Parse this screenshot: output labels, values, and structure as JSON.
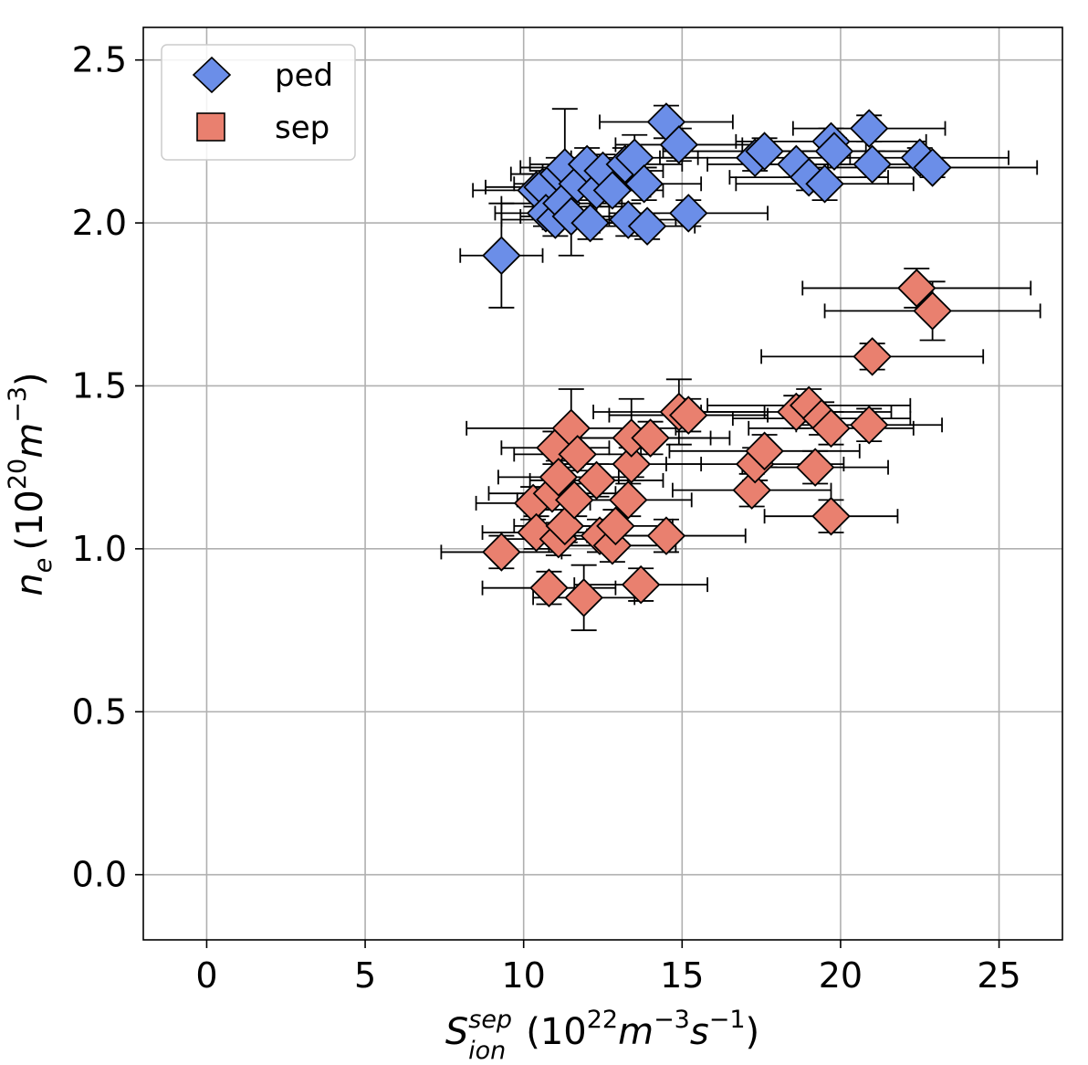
{
  "chart_data": {
    "type": "scatter",
    "title": "",
    "xlabel": {
      "base": "S",
      "sup": "sep",
      "sub": "ion",
      "units": "(10",
      "units_exp": "22",
      "units_mid": "m",
      "units_exp2": "−3",
      "units_tail": "s",
      "units_exp3": "−1",
      "units_close": ")"
    },
    "ylabel": {
      "base": "n",
      "sub": "e",
      "units": "(10",
      "units_exp": "20",
      "units_mid": "m",
      "units_exp2": "−3",
      "units_close": ")"
    },
    "xlim": [
      -2,
      27
    ],
    "ylim": [
      -0.2,
      2.6
    ],
    "xticks": [
      0,
      5,
      10,
      15,
      20,
      25
    ],
    "xtick_labels": [
      "0",
      "5",
      "10",
      "15",
      "20",
      "25"
    ],
    "yticks": [
      0.0,
      0.5,
      1.0,
      1.5,
      2.0,
      2.5
    ],
    "ytick_labels": [
      "0.0",
      "0.5",
      "1.0",
      "1.5",
      "2.0",
      "2.5"
    ],
    "grid": true,
    "legend": {
      "position": "top-left",
      "entries": [
        {
          "label": "ped",
          "marker": "diamond",
          "color": "#6b8ee8"
        },
        {
          "label": "sep",
          "marker": "square",
          "color": "#e9806f"
        }
      ]
    },
    "series": [
      {
        "name": "ped",
        "color": "#6b8ee8",
        "edge": "#000000",
        "points": [
          {
            "x": 9.3,
            "y": 1.9,
            "xerr": 1.3,
            "yerr": 0.16
          },
          {
            "x": 10.4,
            "y": 2.1,
            "xerr": 2.0,
            "yerr": 0.05
          },
          {
            "x": 10.6,
            "y": 2.11,
            "xerr": 1.8,
            "yerr": 0.05
          },
          {
            "x": 10.7,
            "y": 2.03,
            "xerr": 1.6,
            "yerr": 0.04
          },
          {
            "x": 11.0,
            "y": 2.01,
            "xerr": 1.7,
            "yerr": 0.05
          },
          {
            "x": 11.1,
            "y": 2.15,
            "xerr": 1.5,
            "yerr": 0.05
          },
          {
            "x": 11.2,
            "y": 2.06,
            "xerr": 1.9,
            "yerr": 0.05
          },
          {
            "x": 11.3,
            "y": 2.17,
            "xerr": 1.4,
            "yerr": 0.18
          },
          {
            "x": 11.5,
            "y": 2.02,
            "xerr": 1.6,
            "yerr": 0.12
          },
          {
            "x": 11.7,
            "y": 2.12,
            "xerr": 2.0,
            "yerr": 0.05
          },
          {
            "x": 12.0,
            "y": 2.18,
            "xerr": 1.8,
            "yerr": 0.05
          },
          {
            "x": 12.1,
            "y": 2.0,
            "xerr": 1.5,
            "yerr": 0.05
          },
          {
            "x": 12.3,
            "y": 2.1,
            "xerr": 1.7,
            "yerr": 0.05
          },
          {
            "x": 12.5,
            "y": 2.16,
            "xerr": 1.9,
            "yerr": 0.05
          },
          {
            "x": 12.8,
            "y": 2.1,
            "xerr": 1.6,
            "yerr": 0.05
          },
          {
            "x": 13.2,
            "y": 2.18,
            "xerr": 1.8,
            "yerr": 0.05
          },
          {
            "x": 13.3,
            "y": 2.01,
            "xerr": 1.5,
            "yerr": 0.05
          },
          {
            "x": 13.5,
            "y": 2.2,
            "xerr": 2.0,
            "yerr": 0.07
          },
          {
            "x": 13.8,
            "y": 2.12,
            "xerr": 1.8,
            "yerr": 0.05
          },
          {
            "x": 13.9,
            "y": 1.99,
            "xerr": 1.5,
            "yerr": 0.04
          },
          {
            "x": 14.5,
            "y": 2.31,
            "xerr": 2.1,
            "yerr": 0.05
          },
          {
            "x": 14.9,
            "y": 2.24,
            "xerr": 2.0,
            "yerr": 0.05
          },
          {
            "x": 15.2,
            "y": 2.03,
            "xerr": 2.5,
            "yerr": 0.04
          },
          {
            "x": 17.3,
            "y": 2.2,
            "xerr": 3.0,
            "yerr": 0.04
          },
          {
            "x": 17.6,
            "y": 2.22,
            "xerr": 3.2,
            "yerr": 0.04
          },
          {
            "x": 18.6,
            "y": 2.18,
            "xerr": 2.8,
            "yerr": 0.04
          },
          {
            "x": 19.0,
            "y": 2.14,
            "xerr": 2.5,
            "yerr": 0.04
          },
          {
            "x": 19.5,
            "y": 2.12,
            "xerr": 2.8,
            "yerr": 0.05
          },
          {
            "x": 19.7,
            "y": 2.25,
            "xerr": 3.0,
            "yerr": 0.04
          },
          {
            "x": 19.8,
            "y": 2.22,
            "xerr": 2.6,
            "yerr": 0.04
          },
          {
            "x": 20.9,
            "y": 2.29,
            "xerr": 2.4,
            "yerr": 0.04
          },
          {
            "x": 21.0,
            "y": 2.18,
            "xerr": 2.2,
            "yerr": 0.04
          },
          {
            "x": 22.5,
            "y": 2.2,
            "xerr": 2.8,
            "yerr": 0.03
          },
          {
            "x": 22.9,
            "y": 2.17,
            "xerr": 3.3,
            "yerr": 0.03
          }
        ]
      },
      {
        "name": "sep",
        "color": "#e9806f",
        "edge": "#000000",
        "points": [
          {
            "x": 9.3,
            "y": 0.99,
            "xerr": 1.9,
            "yerr": 0.05
          },
          {
            "x": 10.3,
            "y": 1.14,
            "xerr": 1.8,
            "yerr": 0.05
          },
          {
            "x": 10.4,
            "y": 1.05,
            "xerr": 1.7,
            "yerr": 0.05
          },
          {
            "x": 10.8,
            "y": 0.88,
            "xerr": 2.1,
            "yerr": 0.05
          },
          {
            "x": 10.9,
            "y": 1.17,
            "xerr": 2.0,
            "yerr": 0.05
          },
          {
            "x": 11.0,
            "y": 1.31,
            "xerr": 1.7,
            "yerr": 0.05
          },
          {
            "x": 11.1,
            "y": 1.22,
            "xerr": 1.9,
            "yerr": 0.05
          },
          {
            "x": 11.1,
            "y": 1.03,
            "xerr": 1.8,
            "yerr": 0.05
          },
          {
            "x": 11.3,
            "y": 1.07,
            "xerr": 1.6,
            "yerr": 0.05
          },
          {
            "x": 11.5,
            "y": 1.37,
            "xerr": 3.3,
            "yerr": 0.12
          },
          {
            "x": 11.6,
            "y": 1.15,
            "xerr": 1.8,
            "yerr": 0.05
          },
          {
            "x": 11.7,
            "y": 1.29,
            "xerr": 2.0,
            "yerr": 0.05
          },
          {
            "x": 11.9,
            "y": 0.85,
            "xerr": 1.6,
            "yerr": 0.1
          },
          {
            "x": 12.3,
            "y": 1.21,
            "xerr": 2.1,
            "yerr": 0.05
          },
          {
            "x": 12.4,
            "y": 1.04,
            "xerr": 1.9,
            "yerr": 0.05
          },
          {
            "x": 12.8,
            "y": 1.01,
            "xerr": 2.0,
            "yerr": 0.05
          },
          {
            "x": 12.9,
            "y": 1.07,
            "xerr": 1.8,
            "yerr": 0.05
          },
          {
            "x": 13.3,
            "y": 1.15,
            "xerr": 2.0,
            "yerr": 0.05
          },
          {
            "x": 13.4,
            "y": 1.26,
            "xerr": 2.2,
            "yerr": 0.05
          },
          {
            "x": 13.4,
            "y": 1.34,
            "xerr": 2.5,
            "yerr": 0.12
          },
          {
            "x": 13.7,
            "y": 0.89,
            "xerr": 2.1,
            "yerr": 0.05
          },
          {
            "x": 14.0,
            "y": 1.34,
            "xerr": 2.5,
            "yerr": 0.05
          },
          {
            "x": 14.5,
            "y": 1.04,
            "xerr": 2.5,
            "yerr": 0.05
          },
          {
            "x": 14.9,
            "y": 1.42,
            "xerr": 2.7,
            "yerr": 0.1
          },
          {
            "x": 15.2,
            "y": 1.41,
            "xerr": 2.5,
            "yerr": 0.05
          },
          {
            "x": 17.2,
            "y": 1.18,
            "xerr": 2.5,
            "yerr": 0.05
          },
          {
            "x": 17.3,
            "y": 1.26,
            "xerr": 2.8,
            "yerr": 0.05
          },
          {
            "x": 17.6,
            "y": 1.3,
            "xerr": 3.0,
            "yerr": 0.05
          },
          {
            "x": 18.6,
            "y": 1.42,
            "xerr": 3.0,
            "yerr": 0.05
          },
          {
            "x": 19.0,
            "y": 1.44,
            "xerr": 3.2,
            "yerr": 0.05
          },
          {
            "x": 19.2,
            "y": 1.25,
            "xerr": 2.3,
            "yerr": 0.05
          },
          {
            "x": 19.4,
            "y": 1.4,
            "xerr": 2.8,
            "yerr": 0.05
          },
          {
            "x": 19.7,
            "y": 1.37,
            "xerr": 2.6,
            "yerr": 0.05
          },
          {
            "x": 19.7,
            "y": 1.1,
            "xerr": 2.1,
            "yerr": 0.05
          },
          {
            "x": 20.9,
            "y": 1.38,
            "xerr": 2.3,
            "yerr": 0.05
          },
          {
            "x": 21.0,
            "y": 1.59,
            "xerr": 3.5,
            "yerr": 0.04
          },
          {
            "x": 22.4,
            "y": 1.8,
            "xerr": 3.6,
            "yerr": 0.06
          },
          {
            "x": 22.9,
            "y": 1.73,
            "xerr": 3.4,
            "yerr": 0.09
          }
        ]
      }
    ]
  }
}
